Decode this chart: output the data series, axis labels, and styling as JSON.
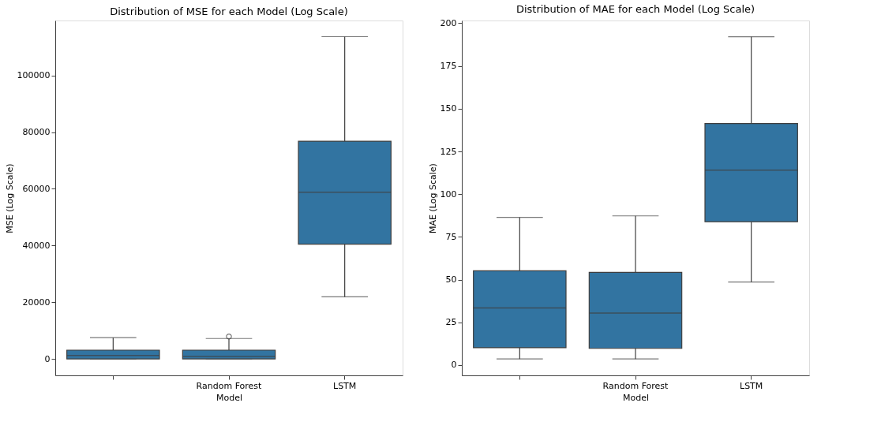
{
  "chart_data": [
    {
      "type": "box",
      "title": "Distribution of MSE for each Model (Log Scale)",
      "xlabel": "Model",
      "ylabel": "MSE (Log Scale)",
      "categories": [
        null,
        "Random Forest",
        "LSTM"
      ],
      "color": "#3274a1",
      "boxes": [
        {
          "low": 0,
          "q1": 0,
          "median": 1200,
          "q3": 3100,
          "high": 7500
        },
        {
          "low": 0,
          "q1": 0,
          "median": 900,
          "q3": 3100,
          "high": 7200,
          "outliers": [
            7900
          ]
        },
        {
          "low": 21900,
          "q1": 40500,
          "median": 58800,
          "q3": 76800,
          "high": 113700
        }
      ],
      "ylim": [
        -5800,
        119400
      ],
      "yticks": [
        0,
        20000,
        40000,
        60000,
        80000,
        100000
      ],
      "grid": false
    },
    {
      "type": "box",
      "title": "Distribution of MAE for each Model (Log Scale)",
      "xlabel": "Model",
      "ylabel": "MAE (Log Scale)",
      "categories": [
        null,
        "Random Forest",
        "LSTM"
      ],
      "color": "#3274a1",
      "boxes": [
        {
          "low": 3.6,
          "q1": 10.2,
          "median": 33.5,
          "q3": 55.2,
          "high": 86.4
        },
        {
          "low": 3.6,
          "q1": 9.8,
          "median": 30.4,
          "q3": 54.3,
          "high": 87.3
        },
        {
          "low": 48.6,
          "q1": 83.9,
          "median": 114.1,
          "q3": 141.3,
          "high": 192.1
        }
      ],
      "ylim": [
        -6,
        201.6
      ],
      "yticks": [
        0,
        25,
        50,
        75,
        100,
        125,
        150,
        175,
        200
      ],
      "grid": false
    }
  ]
}
